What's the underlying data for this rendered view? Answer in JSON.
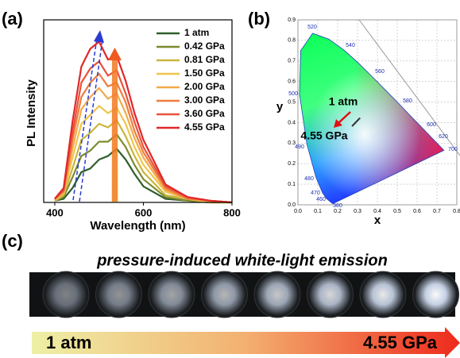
{
  "panel_labels": [
    "(a)",
    "(b)",
    "(c)"
  ],
  "chart_data": [
    {
      "type": "line",
      "xlabel": "Wavelength (nm)",
      "ylabel": "PL Intensity",
      "xlim": [
        375,
        800
      ],
      "ylim": [
        0,
        1
      ],
      "xticks": [
        400,
        600,
        800
      ],
      "legend": "upper right",
      "x": [
        400,
        420,
        440,
        460,
        480,
        500,
        520,
        540,
        560,
        580,
        600,
        650,
        700,
        750,
        800
      ],
      "series": [
        {
          "name": "1 atm",
          "color": "#2f5f2b",
          "values": [
            0.01,
            0.02,
            0.08,
            0.17,
            0.19,
            0.24,
            0.26,
            0.3,
            0.24,
            0.16,
            0.09,
            0.02,
            0.01,
            0,
            0
          ]
        },
        {
          "name": "0.42 GPa",
          "color": "#7d8a2c",
          "values": [
            0.01,
            0.03,
            0.14,
            0.26,
            0.29,
            0.34,
            0.34,
            0.38,
            0.31,
            0.21,
            0.13,
            0.03,
            0.01,
            0,
            0
          ]
        },
        {
          "name": "0.81 GPa",
          "color": "#c9b63c",
          "values": [
            0.01,
            0.04,
            0.19,
            0.35,
            0.39,
            0.44,
            0.42,
            0.46,
            0.37,
            0.26,
            0.17,
            0.04,
            0.02,
            0,
            0
          ]
        },
        {
          "name": "1.50 GPa",
          "color": "#efc54c",
          "values": [
            0.01,
            0.05,
            0.25,
            0.44,
            0.49,
            0.54,
            0.5,
            0.53,
            0.44,
            0.31,
            0.21,
            0.06,
            0.02,
            0,
            0
          ]
        },
        {
          "name": "2.00 GPa",
          "color": "#f2aa4a",
          "values": [
            0.01,
            0.06,
            0.3,
            0.52,
            0.59,
            0.64,
            0.58,
            0.61,
            0.5,
            0.36,
            0.25,
            0.07,
            0.02,
            0.01,
            0
          ]
        },
        {
          "name": "3.00 GPa",
          "color": "#ee7b3e",
          "values": [
            0.02,
            0.06,
            0.35,
            0.59,
            0.67,
            0.72,
            0.65,
            0.67,
            0.56,
            0.4,
            0.28,
            0.08,
            0.02,
            0.01,
            0
          ]
        },
        {
          "name": "3.60 GPa",
          "color": "#e8523a",
          "values": [
            0.02,
            0.07,
            0.39,
            0.67,
            0.75,
            0.79,
            0.71,
            0.74,
            0.61,
            0.45,
            0.31,
            0.09,
            0.03,
            0.01,
            0
          ]
        },
        {
          "name": "4.55 GPa",
          "color": "#e0282a",
          "values": [
            0.02,
            0.08,
            0.45,
            0.76,
            0.86,
            0.9,
            0.8,
            0.82,
            0.68,
            0.5,
            0.35,
            0.1,
            0.03,
            0.01,
            0
          ]
        }
      ]
    },
    {
      "type": "scatter",
      "xlabel": "x",
      "ylabel": "y",
      "grid": true,
      "xlim": [
        0,
        0.8
      ],
      "ylim": [
        0,
        0.9
      ],
      "xticks": [
        {
          "value": 0,
          "label": "0.0"
        },
        0.1,
        0.2,
        0.3,
        0.4,
        0.5,
        0.6,
        0.7,
        0.8
      ],
      "yticks": [
        {
          "value": 0,
          "label": "0.0"
        },
        0.1,
        0.2,
        0.3,
        0.4,
        0.5,
        0.6,
        0.7,
        0.8,
        0.9
      ],
      "locus_labels": [
        380,
        460,
        470,
        480,
        490,
        500,
        520,
        540,
        560,
        580,
        600,
        620,
        700
      ],
      "annotations": [
        "1 atm",
        "4.55 GPa"
      ],
      "color": "#333333",
      "x": [
        0.31,
        0.305,
        0.3,
        0.295,
        0.29,
        0.285,
        0.28,
        0.275
      ],
      "values": [
        0.42,
        0.415,
        0.41,
        0.405,
        0.4,
        0.395,
        0.39,
        0.385
      ]
    }
  ],
  "panel_c": {
    "title": "pressure-induced white-light emission",
    "start_label": "1 atm",
    "end_label": "4.55 GPa"
  }
}
